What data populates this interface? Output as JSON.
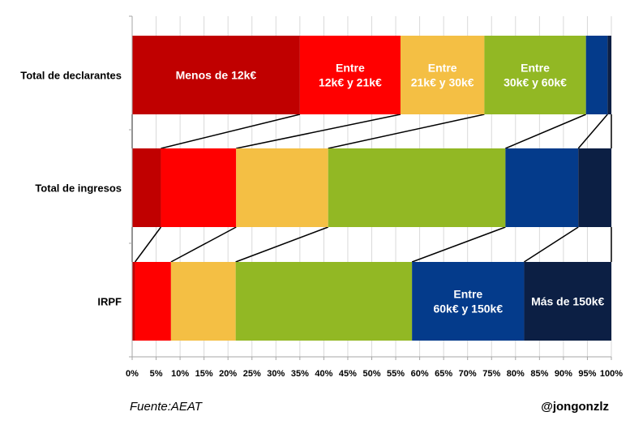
{
  "chart_data": {
    "type": "bar",
    "orientation": "horizontal",
    "stacked": "percent",
    "categories": [
      "Total de declarantes",
      "Total de ingresos",
      "IRPF"
    ],
    "series": [
      {
        "name": "Menos de 12k€",
        "values": [
          35.0,
          6.0,
          0.6
        ],
        "color": "#c00000"
      },
      {
        "name": "Entre 12k€ y 21k€",
        "values": [
          21.0,
          15.7,
          7.5
        ],
        "color": "#ff0000"
      },
      {
        "name": "Entre 21k€ y 30k€",
        "values": [
          17.5,
          19.2,
          13.5
        ],
        "color": "#f4bf44"
      },
      {
        "name": "Entre 30k€ y 60k€",
        "values": [
          21.2,
          37.0,
          36.8
        ],
        "color": "#92b824"
      },
      {
        "name": "Entre 60k€ y 150k€",
        "values": [
          4.5,
          15.2,
          23.4
        ],
        "color": "#043b8b"
      },
      {
        "name": "Más de 150k€",
        "values": [
          0.8,
          6.9,
          18.2
        ],
        "color": "#0c1f44"
      }
    ],
    "segment_labels": [
      {
        "row": 0,
        "series": 0,
        "lines": [
          "Menos de 12k€"
        ]
      },
      {
        "row": 0,
        "series": 1,
        "lines": [
          "Entre",
          "12k€ y 21k€"
        ]
      },
      {
        "row": 0,
        "series": 2,
        "lines": [
          "Entre",
          "21k€ y 30k€"
        ]
      },
      {
        "row": 0,
        "series": 3,
        "lines": [
          "Entre",
          "30k€ y 60k€"
        ]
      },
      {
        "row": 2,
        "series": 4,
        "lines": [
          "Entre",
          "60k€ y 150k€"
        ]
      },
      {
        "row": 2,
        "series": 5,
        "lines": [
          "Más de 150k€"
        ]
      }
    ],
    "x_ticks": [
      "0%",
      "5%",
      "10%",
      "15%",
      "20%",
      "25%",
      "30%",
      "35%",
      "40%",
      "45%",
      "50%",
      "55%",
      "60%",
      "65%",
      "70%",
      "75%",
      "80%",
      "85%",
      "90%",
      "95%",
      "100%"
    ],
    "xlim": [
      0,
      100
    ],
    "grid": true,
    "legend": "none",
    "connector_lines": true
  },
  "footer": {
    "source": "Fuente:AEAT",
    "credit": "@jongonzlz"
  }
}
